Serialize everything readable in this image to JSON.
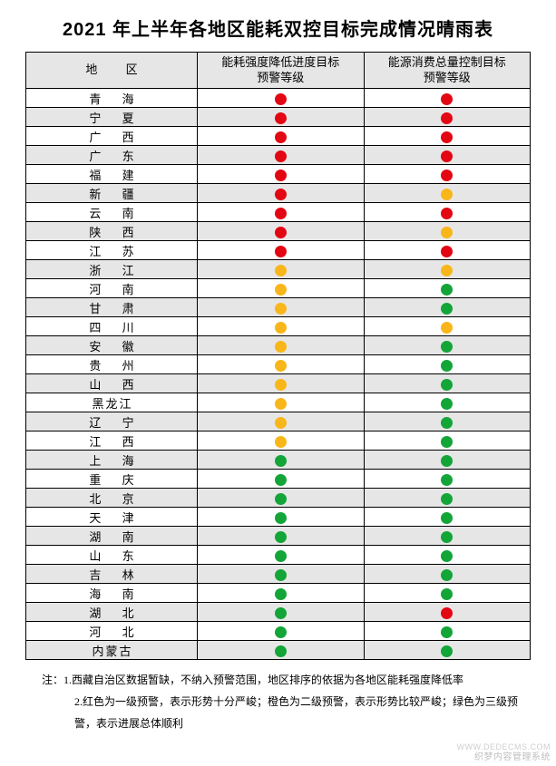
{
  "title": "2021 年上半年各地区能耗双控目标完成情况晴雨表",
  "header": {
    "region": "地  区",
    "col1_l1": "能耗强度降低进度目标",
    "col1_l2": "预警等级",
    "col2_l1": "能源消费总量控制目标",
    "col2_l2": "预警等级"
  },
  "colors": {
    "red": "#e30613",
    "orange": "#f9b61a",
    "green": "#13a538",
    "header_bg": "#e6e6e6",
    "row_alt_bg": "#e6e6e6",
    "row_bg": "#ffffff",
    "border": "#000000",
    "text": "#000000",
    "watermark": "#bfbfbf"
  },
  "rows": [
    {
      "region": "青  海",
      "c1": "red",
      "c2": "red"
    },
    {
      "region": "宁  夏",
      "c1": "red",
      "c2": "red"
    },
    {
      "region": "广  西",
      "c1": "red",
      "c2": "red"
    },
    {
      "region": "广  东",
      "c1": "red",
      "c2": "red"
    },
    {
      "region": "福  建",
      "c1": "red",
      "c2": "red"
    },
    {
      "region": "新  疆",
      "c1": "red",
      "c2": "orange"
    },
    {
      "region": "云  南",
      "c1": "red",
      "c2": "red"
    },
    {
      "region": "陕  西",
      "c1": "red",
      "c2": "orange"
    },
    {
      "region": "江  苏",
      "c1": "red",
      "c2": "red"
    },
    {
      "region": "浙  江",
      "c1": "orange",
      "c2": "orange"
    },
    {
      "region": "河  南",
      "c1": "orange",
      "c2": "green"
    },
    {
      "region": "甘  肃",
      "c1": "orange",
      "c2": "green"
    },
    {
      "region": "四  川",
      "c1": "orange",
      "c2": "orange"
    },
    {
      "region": "安  徽",
      "c1": "orange",
      "c2": "green"
    },
    {
      "region": "贵  州",
      "c1": "orange",
      "c2": "green"
    },
    {
      "region": "山  西",
      "c1": "orange",
      "c2": "green"
    },
    {
      "region": "黑龙江",
      "c1": "orange",
      "c2": "green",
      "three": true
    },
    {
      "region": "辽  宁",
      "c1": "orange",
      "c2": "green"
    },
    {
      "region": "江  西",
      "c1": "orange",
      "c2": "green"
    },
    {
      "region": "上  海",
      "c1": "green",
      "c2": "green"
    },
    {
      "region": "重  庆",
      "c1": "green",
      "c2": "green"
    },
    {
      "region": "北  京",
      "c1": "green",
      "c2": "green"
    },
    {
      "region": "天  津",
      "c1": "green",
      "c2": "green"
    },
    {
      "region": "湖  南",
      "c1": "green",
      "c2": "green"
    },
    {
      "region": "山  东",
      "c1": "green",
      "c2": "green"
    },
    {
      "region": "吉  林",
      "c1": "green",
      "c2": "green"
    },
    {
      "region": "海  南",
      "c1": "green",
      "c2": "green"
    },
    {
      "region": "湖  北",
      "c1": "green",
      "c2": "red"
    },
    {
      "region": "河  北",
      "c1": "green",
      "c2": "green"
    },
    {
      "region": "内蒙古",
      "c1": "green",
      "c2": "green",
      "three": true
    }
  ],
  "notes": {
    "prefix": "注：",
    "n1": "1.西藏自治区数据暂缺，不纳入预警范围，地区排序的依据为各地区能耗强度降低率",
    "n2": "2.红色为一级预警，表示形势十分严峻；橙色为二级预警，表示形势比较严峻；绿色为三级预警，表示进展总体顺利"
  },
  "watermark_sub": "WWW.DEDECMS.COM",
  "watermark": "织梦内容管理系统"
}
